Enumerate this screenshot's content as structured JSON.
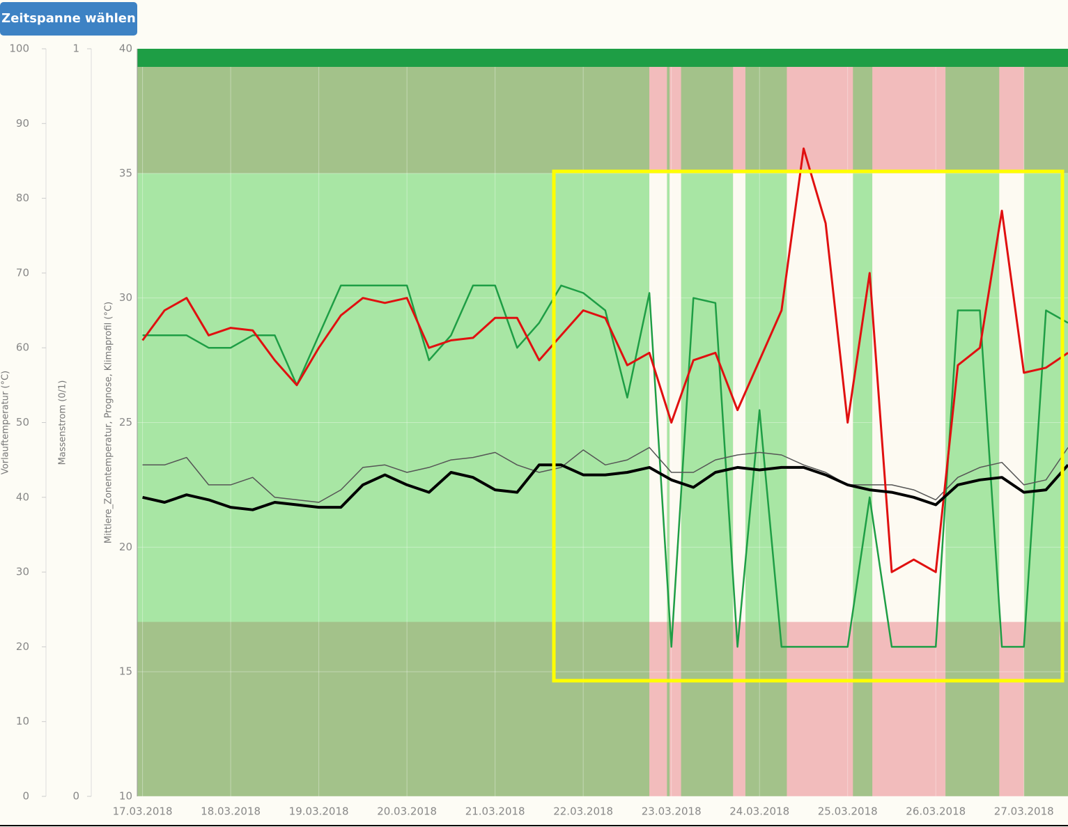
{
  "button": {
    "label": "Zeitspanne wählen"
  },
  "chart_data": {
    "type": "line",
    "ylabel": "Mittlere_Zonentemperatur, Prognose, Klimaprofil (°C)",
    "ylim": [
      10,
      40
    ],
    "yticks": [
      10,
      15,
      20,
      25,
      30,
      35,
      40
    ],
    "y2label": "Vorlauftemperatur (°C)",
    "y2lim": [
      0,
      100
    ],
    "y2ticks": [
      0,
      10,
      20,
      30,
      40,
      50,
      60,
      70,
      80,
      90,
      100
    ],
    "y3label": "Massenstrom (0/1)",
    "y3lim": [
      0,
      1
    ],
    "y3ticks": [
      0,
      1
    ],
    "xlim": [
      -0.06,
      10.5
    ],
    "xticks": [
      {
        "value": 0,
        "label": "17.03.2018"
      },
      {
        "value": 1,
        "label": "18.03.2018"
      },
      {
        "value": 2,
        "label": "19.03.2018"
      },
      {
        "value": 3,
        "label": "20.03.2018"
      },
      {
        "value": 4,
        "label": "21.03.2018"
      },
      {
        "value": 5,
        "label": "22.03.2018"
      },
      {
        "value": 6,
        "label": "23.03.2018"
      },
      {
        "value": 7,
        "label": "24.03.2018"
      },
      {
        "value": 8,
        "label": "25.03.2018"
      },
      {
        "value": 9,
        "label": "26.03.2018"
      },
      {
        "value": 10,
        "label": "27.03.2018"
      }
    ],
    "grid": true,
    "comfort_range": [
      17,
      35
    ],
    "bands": [
      [
        5.75,
        5.95
      ],
      [
        5.98,
        6.11
      ],
      [
        6.7,
        6.84
      ],
      [
        7.31,
        8.06
      ],
      [
        8.28,
        9.11
      ],
      [
        9.72,
        10.0
      ]
    ],
    "x": [
      0,
      0.25,
      0.5,
      0.75,
      1,
      1.25,
      1.5,
      1.75,
      2,
      2.25,
      2.5,
      2.75,
      3,
      3.25,
      3.5,
      3.75,
      4,
      4.25,
      4.5,
      4.75,
      5,
      5.25,
      5.5,
      5.75,
      6,
      6.25,
      6.5,
      6.75,
      7,
      7.25,
      7.5,
      7.75,
      8,
      8.25,
      8.5,
      8.75,
      9,
      9.25,
      9.5,
      9.75,
      10,
      10.25,
      10.5
    ],
    "series": [
      {
        "color": "#1e9e45",
        "width": 2.5,
        "values": [
          28.5,
          28.5,
          28.5,
          28,
          28,
          28.5,
          28.5,
          26.5,
          28.5,
          30.5,
          30.5,
          30.5,
          30.5,
          27.5,
          28.5,
          30.5,
          30.5,
          28,
          29,
          30.5,
          30.2,
          29.5,
          26,
          30.2,
          16,
          30,
          29.8,
          16,
          25.5,
          16,
          16,
          16,
          16,
          22,
          16,
          16,
          16,
          29.5,
          29.5,
          16,
          16,
          29.5,
          29
        ]
      },
      {
        "color": "#555555",
        "width": 1.5,
        "values": [
          23.3,
          23.3,
          23.6,
          22.5,
          22.5,
          22.8,
          22,
          21.9,
          21.8,
          22.3,
          23.2,
          23.3,
          23,
          23.2,
          23.5,
          23.6,
          23.8,
          23.3,
          23,
          23.2,
          23.9,
          23.3,
          23.5,
          24,
          23,
          23,
          23.5,
          23.7,
          23.8,
          23.7,
          23.3,
          23,
          22.5,
          22.5,
          22.5,
          22.3,
          21.9,
          22.8,
          23.2,
          23.4,
          22.5,
          22.7,
          24
        ]
      },
      {
        "color": "#e01010",
        "width": 3,
        "values": [
          28.3,
          29.5,
          30,
          28.5,
          28.8,
          28.7,
          27.5,
          26.5,
          28,
          29.3,
          30,
          29.8,
          30,
          28,
          28.3,
          28.4,
          29.2,
          29.2,
          27.5,
          28.5,
          29.5,
          29.2,
          27.3,
          27.8,
          25,
          27.5,
          27.8,
          25.5,
          27.5,
          29.5,
          36,
          33,
          25,
          31,
          19,
          19.5,
          19,
          27.3,
          28,
          33.5,
          27,
          27.2,
          27.8
        ]
      },
      {
        "color": "#000000",
        "width": 4,
        "values": [
          22,
          21.8,
          22.1,
          21.9,
          21.6,
          21.5,
          21.8,
          21.7,
          21.6,
          21.6,
          22.5,
          22.9,
          22.5,
          22.2,
          23,
          22.8,
          22.3,
          22.2,
          23.3,
          23.3,
          22.9,
          22.9,
          23,
          23.2,
          22.7,
          22.4,
          23,
          23.2,
          23.1,
          23.2,
          23.2,
          22.9,
          22.5,
          22.3,
          22.2,
          22,
          21.7,
          22.5,
          22.7,
          22.8,
          22.2,
          22.3,
          23.3
        ]
      }
    ]
  }
}
